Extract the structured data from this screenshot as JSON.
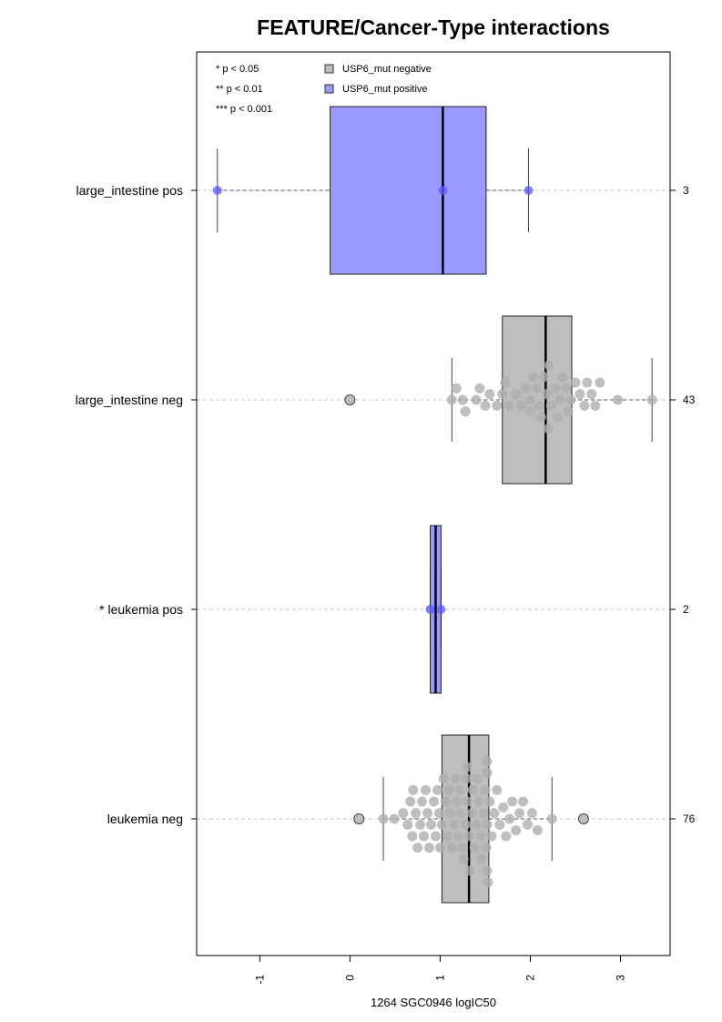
{
  "chart_data": {
    "type": "boxplot",
    "title": "FEATURE/Cancer-Type interactions",
    "xlabel": "1264 SGC0946 logIC50",
    "xlim": [
      -1.7,
      3.55
    ],
    "xticks": [
      -1,
      0,
      1,
      2,
      3
    ],
    "significance_legend": [
      "* p < 0.05",
      "** p < 0.01",
      "*** p < 0.001"
    ],
    "legend": [
      {
        "label": "USP6_mut negative",
        "color": "#bebebe"
      },
      {
        "label": "USP6_mut positive",
        "color": "#9999ff"
      }
    ],
    "groups": [
      {
        "label": "large_intestine pos",
        "count_label": "3",
        "status": "positive",
        "box": {
          "q1": -0.22,
          "median": 1.03,
          "q3": 1.51,
          "whisker_low": -1.47,
          "whisker_high": 1.98
        },
        "outliers": [],
        "points": [
          -1.47,
          1.03,
          1.98
        ]
      },
      {
        "label": "large_intestine neg",
        "count_label": "43",
        "status": "negative",
        "box": {
          "q1": 1.69,
          "median": 2.17,
          "q3": 2.46,
          "whisker_low": 1.13,
          "whisker_high": 3.35
        },
        "outliers": [
          0.0
        ],
        "points": [
          0.0,
          1.13,
          1.18,
          1.25,
          1.28,
          1.4,
          1.44,
          1.5,
          1.55,
          1.63,
          1.69,
          1.72,
          1.76,
          1.84,
          1.9,
          1.95,
          2.0,
          2.03,
          2.07,
          2.1,
          2.12,
          2.15,
          2.18,
          2.2,
          2.21,
          2.23,
          2.28,
          2.3,
          2.33,
          2.36,
          2.4,
          2.42,
          2.45,
          2.5,
          2.55,
          2.6,
          2.63,
          2.68,
          2.72,
          2.77,
          2.97,
          3.35,
          2.0
        ]
      },
      {
        "label": "* leukemia pos",
        "count_label": "2",
        "status": "positive",
        "box": {
          "q1": 0.89,
          "median": 0.95,
          "q3": 1.01,
          "whisker_low": 0.89,
          "whisker_high": 1.01
        },
        "outliers": [],
        "points": [
          0.89,
          1.01
        ]
      },
      {
        "label": "leukemia neg",
        "count_label": "76",
        "status": "negative",
        "box": {
          "q1": 1.02,
          "median": 1.32,
          "q3": 1.54,
          "whisker_low": 0.37,
          "whisker_high": 2.24
        },
        "outliers": [
          0.1,
          2.59
        ],
        "points": [
          0.1,
          0.37,
          0.49,
          0.59,
          0.64,
          0.67,
          0.69,
          0.7,
          0.73,
          0.75,
          0.78,
          0.8,
          0.82,
          0.84,
          0.86,
          0.88,
          0.9,
          0.93,
          0.95,
          0.97,
          0.99,
          1.0,
          1.02,
          1.04,
          1.06,
          1.08,
          1.1,
          1.11,
          1.13,
          1.15,
          1.17,
          1.18,
          1.2,
          1.22,
          1.23,
          1.25,
          1.26,
          1.28,
          1.29,
          1.3,
          1.32,
          1.33,
          1.35,
          1.36,
          1.38,
          1.4,
          1.41,
          1.43,
          1.45,
          1.46,
          1.48,
          1.5,
          1.51,
          1.53,
          1.55,
          1.57,
          1.6,
          1.63,
          1.66,
          1.7,
          1.73,
          1.77,
          1.8,
          1.84,
          1.88,
          1.92,
          1.97,
          2.02,
          2.08,
          2.24,
          2.59,
          1.52,
          1.52,
          1.52,
          1.52,
          1.3
        ]
      }
    ]
  }
}
